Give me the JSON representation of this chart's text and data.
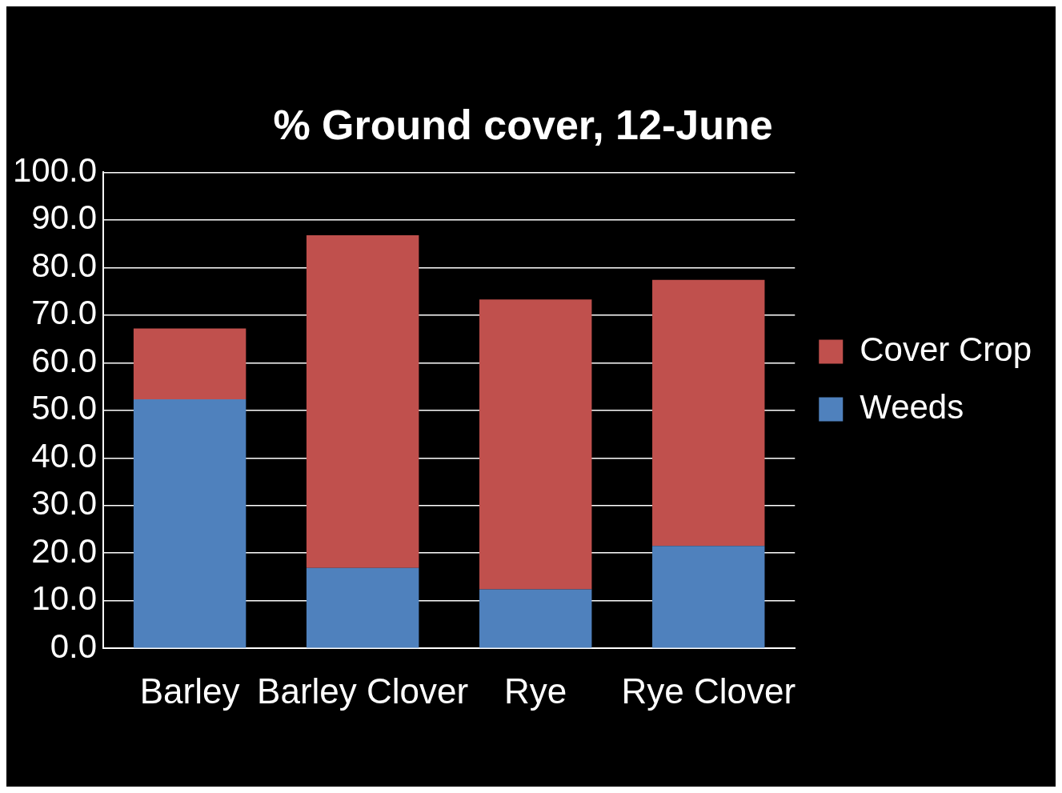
{
  "chart_data": {
    "type": "bar",
    "title": "% Ground cover, 12-June",
    "categories": [
      "Barley",
      "Barley Clover",
      "Rye",
      "Rye Clover"
    ],
    "stacked": true,
    "series": [
      {
        "name": "Weeds",
        "color": "#4f81bd",
        "values": [
          52.3,
          16.9,
          12.4,
          21.5
        ]
      },
      {
        "name": "Cover Crop",
        "color": "#c0504d",
        "values": [
          14.9,
          69.9,
          60.9,
          55.9
        ]
      }
    ],
    "ylim": [
      0,
      100
    ],
    "yticks": [
      {
        "value": 0,
        "label": "0.0"
      },
      {
        "value": 10,
        "label": "10.0"
      },
      {
        "value": 20,
        "label": "20.0"
      },
      {
        "value": 30,
        "label": "30.0"
      },
      {
        "value": 40,
        "label": "40.0"
      },
      {
        "value": 50,
        "label": "50.0"
      },
      {
        "value": 60,
        "label": "60.0"
      },
      {
        "value": 70,
        "label": "70.0"
      },
      {
        "value": 80,
        "label": "80.0"
      },
      {
        "value": 90,
        "label": "90.0"
      },
      {
        "value": 100,
        "label": "100.0"
      }
    ],
    "grid": "y",
    "legend": "right"
  }
}
